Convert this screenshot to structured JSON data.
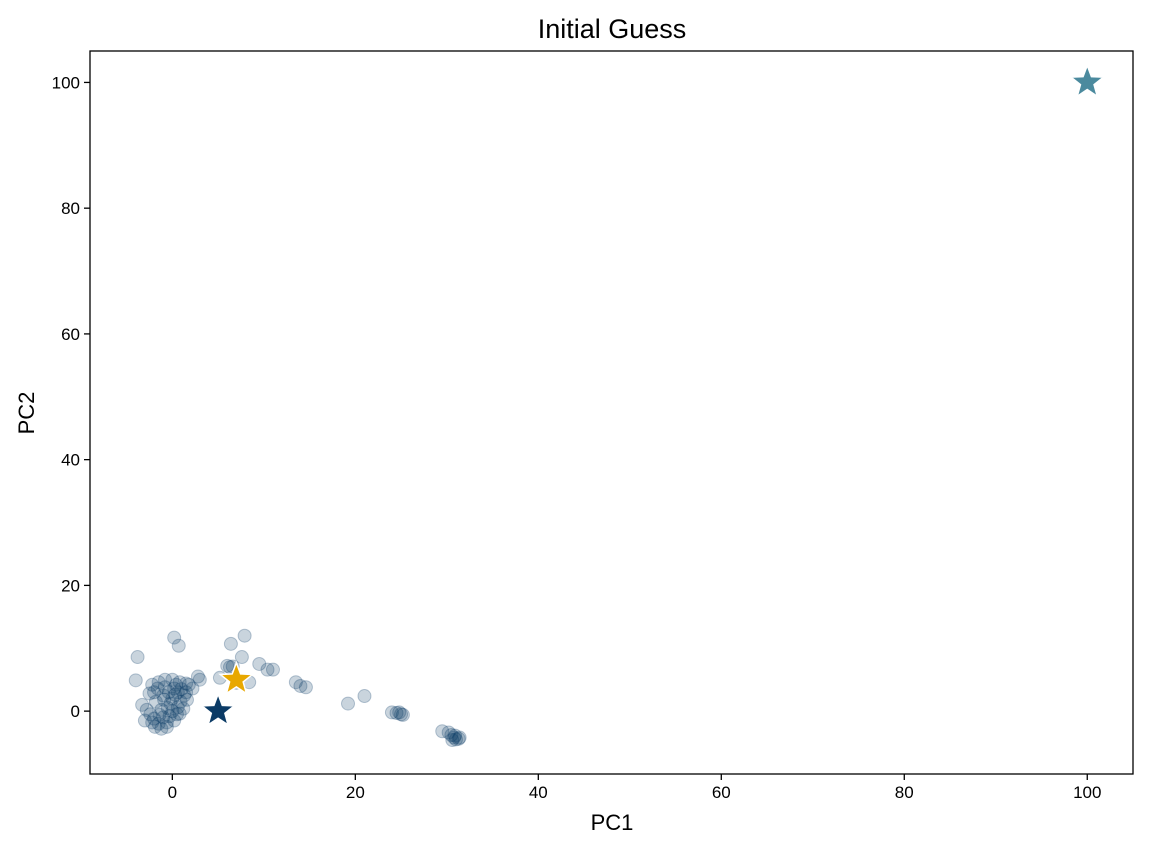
{
  "chart_data": {
    "type": "scatter",
    "title": "Initial Guess",
    "xlabel": "PC1",
    "ylabel": "PC2",
    "xlim": [
      -9,
      105
    ],
    "ylim": [
      -10,
      105
    ],
    "xticks": [
      0,
      20,
      40,
      60,
      80,
      100
    ],
    "yticks": [
      0,
      20,
      40,
      60,
      80,
      100
    ],
    "grid": false,
    "colors": {
      "points": "#0b3b66",
      "star_dark": "#0b3b66",
      "star_gold": "#e8a800",
      "star_teal": "#4b8a9e"
    },
    "points_opacity": 0.22,
    "points": [
      [
        -3.8,
        8.6
      ],
      [
        -4.0,
        4.9
      ],
      [
        0.2,
        11.7
      ],
      [
        0.7,
        10.4
      ],
      [
        6.4,
        10.7
      ],
      [
        7.9,
        12.0
      ],
      [
        7.6,
        8.6
      ],
      [
        9.5,
        7.5
      ],
      [
        10.4,
        6.6
      ],
      [
        11.0,
        6.6
      ],
      [
        6.0,
        7.2
      ],
      [
        6.3,
        7.0
      ],
      [
        6.6,
        7.1
      ],
      [
        8.4,
        4.6
      ],
      [
        7.0,
        4.5
      ],
      [
        13.5,
        4.6
      ],
      [
        14.0,
        4.0
      ],
      [
        14.6,
        3.8
      ],
      [
        2.8,
        5.5
      ],
      [
        3.0,
        5.0
      ],
      [
        1.8,
        4.2
      ],
      [
        2.2,
        3.6
      ],
      [
        5.2,
        5.3
      ],
      [
        -3.3,
        1.0
      ],
      [
        -2.5,
        2.8
      ],
      [
        -2.0,
        3.0
      ],
      [
        -3.0,
        -1.5
      ],
      [
        -2.2,
        4.2
      ],
      [
        -1.5,
        4.6
      ],
      [
        -0.8,
        5.0
      ],
      [
        0.0,
        5.0
      ],
      [
        0.8,
        4.6
      ],
      [
        1.5,
        4.4
      ],
      [
        1.3,
        2.5
      ],
      [
        0.0,
        0.0
      ],
      [
        -0.5,
        0.5
      ],
      [
        0.5,
        -0.5
      ],
      [
        -1.0,
        -1.0
      ],
      [
        -1.5,
        -2.0
      ],
      [
        -1.2,
        -2.8
      ],
      [
        -0.6,
        -2.5
      ],
      [
        0.2,
        -1.5
      ],
      [
        0.6,
        0.6
      ],
      [
        0.9,
        1.5
      ],
      [
        0.0,
        2.0
      ],
      [
        -0.4,
        3.0
      ],
      [
        0.2,
        3.6
      ],
      [
        -1.0,
        2.5
      ],
      [
        -1.8,
        1.5
      ],
      [
        -2.4,
        -0.5
      ],
      [
        -2.2,
        -1.8
      ],
      [
        -1.9,
        -2.5
      ],
      [
        -0.8,
        3.8
      ],
      [
        0.4,
        4.2
      ],
      [
        1.0,
        3.5
      ],
      [
        1.5,
        3.0
      ],
      [
        -0.2,
        1.2
      ],
      [
        -1.2,
        0.2
      ],
      [
        -2.8,
        0.2
      ],
      [
        -1.6,
        3.6
      ],
      [
        -0.6,
        -1.8
      ],
      [
        0.8,
        -0.4
      ],
      [
        1.2,
        0.4
      ],
      [
        0.3,
        2.6
      ],
      [
        -1.4,
        -0.6
      ],
      [
        -0.9,
        1.8
      ],
      [
        0.6,
        3.0
      ],
      [
        -2.0,
        -1.2
      ],
      [
        -0.3,
        -0.8
      ],
      [
        1.6,
        1.8
      ],
      [
        19.2,
        1.2
      ],
      [
        21.0,
        2.4
      ],
      [
        24.0,
        -0.2
      ],
      [
        24.5,
        -0.3
      ],
      [
        25.0,
        -0.5
      ],
      [
        25.2,
        -0.6
      ],
      [
        24.8,
        -0.2
      ],
      [
        29.5,
        -3.2
      ],
      [
        30.2,
        -3.4
      ],
      [
        30.5,
        -3.8
      ],
      [
        30.8,
        -4.2
      ],
      [
        31.0,
        -4.5
      ],
      [
        31.3,
        -4.4
      ],
      [
        30.6,
        -4.6
      ],
      [
        30.9,
        -3.9
      ],
      [
        31.4,
        -4.2
      ]
    ],
    "centroids": [
      {
        "x": 5.0,
        "y": 0.0,
        "color": "#0b3b66"
      },
      {
        "x": 7.0,
        "y": 5.0,
        "color": "#e8a800"
      },
      {
        "x": 100.0,
        "y": 100.0,
        "color": "#4b8a9e"
      }
    ]
  }
}
